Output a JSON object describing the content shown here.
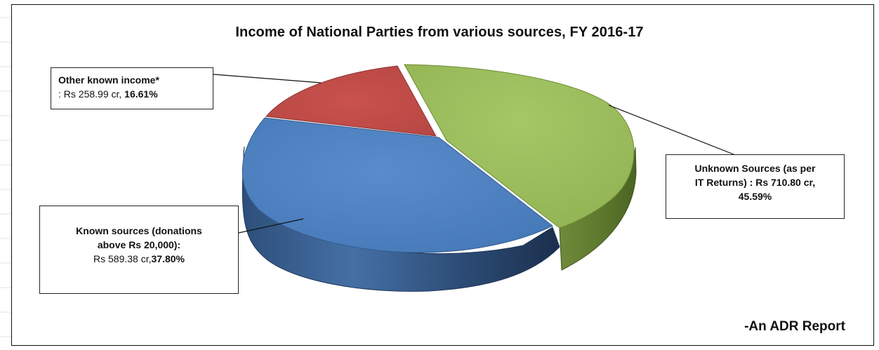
{
  "chart_data": {
    "type": "pie",
    "title": "Income of National Parties from various sources, FY 2016-17",
    "unit": "Rs cr",
    "slices": [
      {
        "key": "unknown",
        "line1": "Unknown Sources (as per",
        "line2": "IT Returns) : Rs 710.80 cr,",
        "line3": "45.59%",
        "value": 710.8,
        "percent": 45.59,
        "color": "#9bbb59"
      },
      {
        "key": "known",
        "line1": "Known sources (donations",
        "line2": "above Rs 20,000):",
        "line3_prefix": "Rs 589.38 cr,",
        "line3_percent": "37.80%",
        "value": 589.38,
        "percent": 37.8,
        "color": "#4f81bd"
      },
      {
        "key": "other",
        "line1": "Other known income*",
        "line2_prefix": ": Rs 258.99 cr, ",
        "line2_percent": "16.61%",
        "value": 258.99,
        "percent": 16.61,
        "color": "#c0504d"
      }
    ],
    "footer": "-An ADR Report"
  }
}
